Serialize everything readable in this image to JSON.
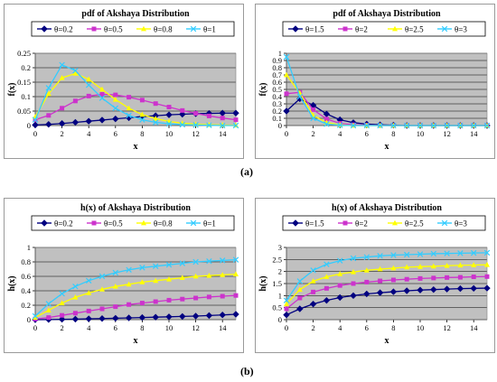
{
  "chart_data": [
    {
      "type": "line",
      "title": "pdf of Akshaya Distribution",
      "xlabel": "x",
      "ylabel": "f(x)",
      "xlim": [
        0,
        15
      ],
      "ylim": [
        0,
        0.25
      ],
      "xticks": [
        "0",
        "2",
        "4",
        "6",
        "8",
        "10",
        "12",
        "14"
      ],
      "yticks": [
        "0",
        "0.05",
        "0.1",
        "0.15",
        "0.2",
        "0.25"
      ],
      "grid": true,
      "legend": "top",
      "x": [
        0,
        1,
        2,
        3,
        4,
        5,
        6,
        7,
        8,
        9,
        10,
        11,
        12,
        13,
        14,
        15
      ],
      "series": [
        {
          "name": "θ=0.2",
          "color": "#000080",
          "marker": "diamond",
          "values": [
            0.002,
            0.004,
            0.007,
            0.011,
            0.015,
            0.019,
            0.023,
            0.027,
            0.031,
            0.034,
            0.037,
            0.039,
            0.041,
            0.042,
            0.043,
            0.043
          ]
        },
        {
          "name": "θ=0.5",
          "color": "#cc33cc",
          "marker": "square",
          "values": [
            0.02,
            0.035,
            0.06,
            0.085,
            0.102,
            0.108,
            0.106,
            0.098,
            0.088,
            0.076,
            0.064,
            0.052,
            0.042,
            0.033,
            0.026,
            0.02
          ]
        },
        {
          "name": "θ=0.8",
          "color": "#ffff00",
          "marker": "triangle",
          "values": [
            0.03,
            0.11,
            0.165,
            0.18,
            0.16,
            0.125,
            0.09,
            0.06,
            0.038,
            0.024,
            0.014,
            0.008,
            0.005,
            0.003,
            0.002,
            0.001
          ]
        },
        {
          "name": "θ=1",
          "color": "#33ccff",
          "marker": "x",
          "values": [
            0.02,
            0.13,
            0.21,
            0.19,
            0.14,
            0.095,
            0.06,
            0.035,
            0.02,
            0.011,
            0.006,
            0.003,
            0.002,
            0.001,
            0.0,
            0.0
          ]
        }
      ]
    },
    {
      "type": "line",
      "title": "pdf of Akshaya Distribution",
      "xlabel": "x",
      "ylabel": "f(x)",
      "xlim": [
        0,
        15
      ],
      "ylim": [
        0,
        1
      ],
      "xticks": [
        "0",
        "2",
        "4",
        "6",
        "8",
        "10",
        "12",
        "14"
      ],
      "yticks": [
        "0",
        "0.1",
        "0.2",
        "0.3",
        "0.4",
        "0.5",
        "0.6",
        "0.7",
        "0.8",
        "0.9",
        "1"
      ],
      "grid": true,
      "legend": "top",
      "x": [
        0,
        1,
        2,
        3,
        4,
        5,
        6,
        7,
        8,
        9,
        10,
        11,
        12,
        13,
        14,
        15
      ],
      "series": [
        {
          "name": "θ=1.5",
          "color": "#000080",
          "marker": "diamond",
          "values": [
            0.2,
            0.37,
            0.28,
            0.16,
            0.08,
            0.04,
            0.02,
            0.01,
            0.005,
            0.0,
            0.0,
            0.0,
            0.0,
            0.0,
            0.0,
            0.0
          ]
        },
        {
          "name": "θ=2",
          "color": "#cc33cc",
          "marker": "square",
          "values": [
            0.44,
            0.46,
            0.22,
            0.09,
            0.03,
            0.01,
            0.005,
            0.0,
            0.0,
            0.0,
            0.0,
            0.0,
            0.0,
            0.0,
            0.0,
            0.0
          ]
        },
        {
          "name": "θ=2.5",
          "color": "#ffff00",
          "marker": "triangle",
          "values": [
            0.7,
            0.45,
            0.14,
            0.04,
            0.01,
            0.0,
            0.0,
            0.0,
            0.0,
            0.0,
            0.0,
            0.0,
            0.0,
            0.0,
            0.0,
            0.0
          ]
        },
        {
          "name": "θ=3",
          "color": "#33ccff",
          "marker": "x",
          "values": [
            0.95,
            0.4,
            0.1,
            0.02,
            0.005,
            0.0,
            0.0,
            0.0,
            0.0,
            0.0,
            0.0,
            0.0,
            0.0,
            0.0,
            0.0,
            0.0
          ]
        }
      ]
    },
    {
      "type": "line",
      "title": "h(x) of Akshaya Distribution",
      "xlabel": "x",
      "ylabel": "h(x)",
      "xlim": [
        0,
        15
      ],
      "ylim": [
        0,
        1
      ],
      "xticks": [
        "0",
        "2",
        "4",
        "6",
        "8",
        "10",
        "12",
        "14"
      ],
      "yticks": [
        "0",
        "0.2",
        "0.4",
        "0.6",
        "0.8",
        "1"
      ],
      "grid": true,
      "legend": "top",
      "x": [
        0,
        1,
        2,
        3,
        4,
        5,
        6,
        7,
        8,
        9,
        10,
        11,
        12,
        13,
        14,
        15
      ],
      "series": [
        {
          "name": "θ=0.2",
          "color": "#000080",
          "marker": "diamond",
          "values": [
            0.0,
            0.002,
            0.005,
            0.008,
            0.012,
            0.016,
            0.02,
            0.025,
            0.03,
            0.035,
            0.04,
            0.045,
            0.05,
            0.058,
            0.066,
            0.075
          ]
        },
        {
          "name": "θ=0.5",
          "color": "#cc33cc",
          "marker": "square",
          "values": [
            0.01,
            0.03,
            0.06,
            0.09,
            0.12,
            0.15,
            0.18,
            0.21,
            0.23,
            0.25,
            0.27,
            0.285,
            0.3,
            0.315,
            0.325,
            0.335
          ]
        },
        {
          "name": "θ=0.8",
          "color": "#ffff00",
          "marker": "triangle",
          "values": [
            0.03,
            0.13,
            0.23,
            0.31,
            0.37,
            0.42,
            0.46,
            0.49,
            0.52,
            0.54,
            0.56,
            0.58,
            0.6,
            0.61,
            0.62,
            0.63
          ]
        },
        {
          "name": "θ=1",
          "color": "#33ccff",
          "marker": "x",
          "values": [
            0.05,
            0.22,
            0.36,
            0.46,
            0.54,
            0.6,
            0.65,
            0.69,
            0.72,
            0.74,
            0.76,
            0.78,
            0.8,
            0.81,
            0.82,
            0.83
          ]
        }
      ]
    },
    {
      "type": "line",
      "title": "h(x) of Akshaya Distribution",
      "xlabel": "x",
      "ylabel": "h(x)",
      "xlim": [
        0,
        15
      ],
      "ylim": [
        0,
        3
      ],
      "xticks": [
        "0",
        "2",
        "4",
        "6",
        "8",
        "10",
        "12",
        "14"
      ],
      "yticks": [
        "0",
        "0.5",
        "1",
        "1.5",
        "2",
        "2.5",
        "3"
      ],
      "grid": true,
      "legend": "top",
      "x": [
        0,
        1,
        2,
        3,
        4,
        5,
        6,
        7,
        8,
        9,
        10,
        11,
        12,
        13,
        14,
        15
      ],
      "series": [
        {
          "name": "θ=1.5",
          "color": "#000080",
          "marker": "diamond",
          "values": [
            0.2,
            0.45,
            0.65,
            0.8,
            0.92,
            1.0,
            1.07,
            1.12,
            1.16,
            1.2,
            1.23,
            1.25,
            1.27,
            1.29,
            1.3,
            1.31
          ]
        },
        {
          "name": "θ=2",
          "color": "#cc33cc",
          "marker": "square",
          "values": [
            0.45,
            0.9,
            1.15,
            1.3,
            1.42,
            1.5,
            1.56,
            1.61,
            1.65,
            1.68,
            1.71,
            1.73,
            1.75,
            1.76,
            1.78,
            1.79
          ]
        },
        {
          "name": "θ=2.5",
          "color": "#ffff00",
          "marker": "triangle",
          "values": [
            0.65,
            1.25,
            1.6,
            1.78,
            1.9,
            1.98,
            2.05,
            2.1,
            2.14,
            2.18,
            2.2,
            2.22,
            2.24,
            2.26,
            2.27,
            2.28
          ]
        },
        {
          "name": "θ=3",
          "color": "#33ccff",
          "marker": "x",
          "values": [
            0.8,
            1.6,
            2.05,
            2.3,
            2.45,
            2.55,
            2.6,
            2.65,
            2.68,
            2.7,
            2.72,
            2.74,
            2.75,
            2.76,
            2.77,
            2.78
          ]
        }
      ]
    }
  ],
  "subfigure_labels": {
    "a": "(a)",
    "b": "(b)"
  }
}
